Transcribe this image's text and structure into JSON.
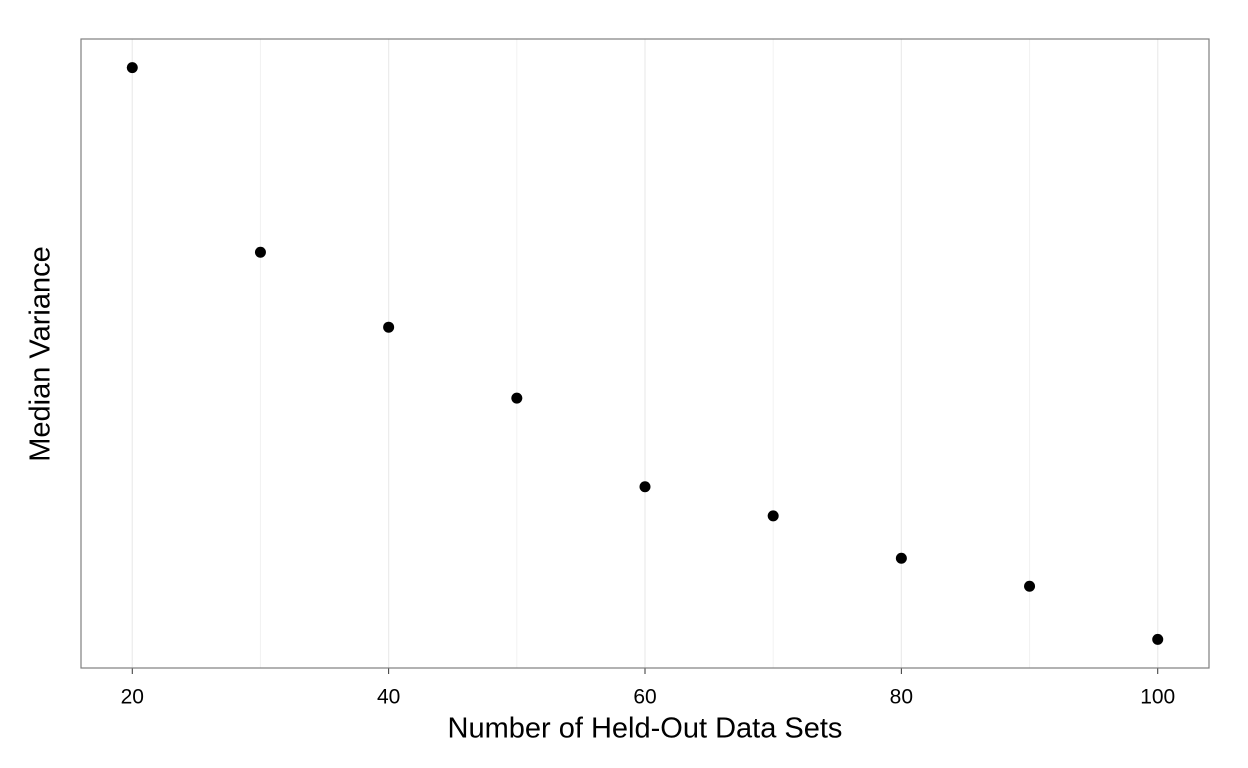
{
  "chart_data": {
    "type": "scatter",
    "x_label": "Number of Held-Out Data Sets",
    "y_label": "Median Variance",
    "x": [
      20,
      30,
      40,
      50,
      60,
      70,
      80,
      90,
      100
    ],
    "values": [
      100,
      67.7,
      54.6,
      42.2,
      26.7,
      21.6,
      14.2,
      9.3,
      0
    ],
    "color": "#000000",
    "xlim": [
      16,
      104
    ],
    "ylim": [
      -5,
      105
    ],
    "xticks": [
      20,
      40,
      60,
      80,
      100
    ],
    "xminorticks": [
      30,
      50,
      70,
      90
    ],
    "grid": true
  }
}
